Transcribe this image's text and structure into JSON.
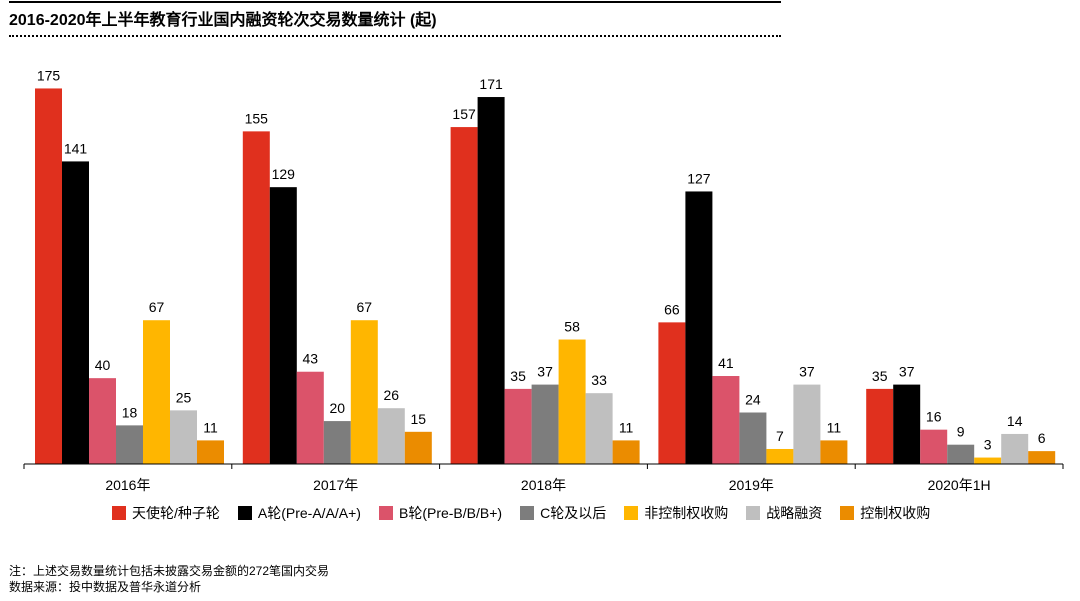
{
  "title": "2016-2020年上半年教育行业国内融资轮次交易数量统计 (起)",
  "notes": {
    "note": "注：上述交易数量统计包括未披露交易金额的272笔国内交易",
    "source": "数据来源：投中数据及普华永道分析"
  },
  "chart_data": {
    "type": "bar",
    "title": "2016-2020年上半年教育行业国内融资轮次交易数量统计 (起)",
    "categories": [
      "2016年",
      "2017年",
      "2018年",
      "2019年",
      "2020年1H"
    ],
    "ylim": [
      0,
      180
    ],
    "grid": false,
    "legend_position": "bottom",
    "series": [
      {
        "name": "天使轮/种子轮",
        "color": "#E0301E",
        "values": [
          175,
          155,
          157,
          66,
          35
        ]
      },
      {
        "name": "A轮(Pre-A/A/A+)",
        "color": "#000000",
        "values": [
          141,
          129,
          171,
          127,
          37
        ]
      },
      {
        "name": "B轮(Pre-B/B/B+)",
        "color": "#DB536A",
        "values": [
          40,
          43,
          35,
          41,
          16
        ]
      },
      {
        "name": "C轮及以后",
        "color": "#7D7D7D",
        "values": [
          18,
          20,
          37,
          24,
          9
        ]
      },
      {
        "name": "非控制权收购",
        "color": "#FFB600",
        "values": [
          67,
          67,
          58,
          7,
          3
        ]
      },
      {
        "name": "战略融资",
        "color": "#BFBFBF",
        "values": [
          25,
          26,
          33,
          37,
          14
        ]
      },
      {
        "name": "控制权收购",
        "color": "#EB8C00",
        "values": [
          11,
          15,
          11,
          11,
          6
        ]
      }
    ]
  }
}
